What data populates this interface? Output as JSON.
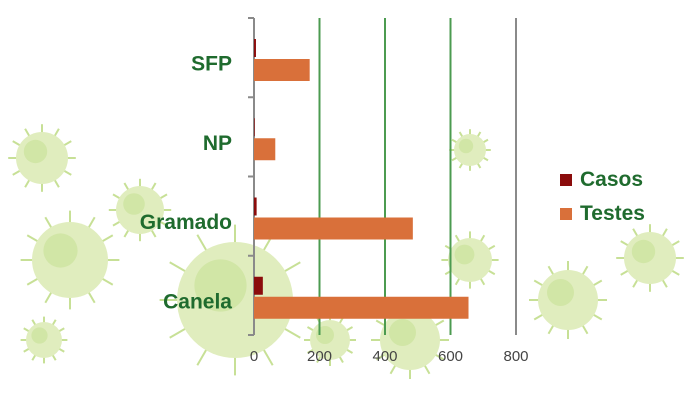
{
  "colors": {
    "casos": "#8b0c0c",
    "testes": "#d9703a",
    "gridline": "#4c9b50",
    "axis": "#8a8a8a",
    "category_text": "#1f6b2e",
    "tick_text": "#444444",
    "virus_fill": "#c8e08a",
    "virus_core": "#9bc842"
  },
  "chart_data": {
    "type": "bar",
    "orientation": "horizontal",
    "categories": [
      "SFP",
      "NP",
      "Gramado",
      "Canela"
    ],
    "series": [
      {
        "name": "Casos",
        "values": [
          6,
          2,
          8,
          27
        ]
      },
      {
        "name": "Testes",
        "values": [
          170,
          65,
          485,
          655
        ]
      }
    ],
    "x_ticks": [
      "0",
      "200",
      "400",
      "600",
      "800"
    ],
    "xlim": [
      0,
      800
    ],
    "grid": "vertical",
    "legend": "right",
    "title": "",
    "xlabel": "",
    "ylabel": ""
  }
}
